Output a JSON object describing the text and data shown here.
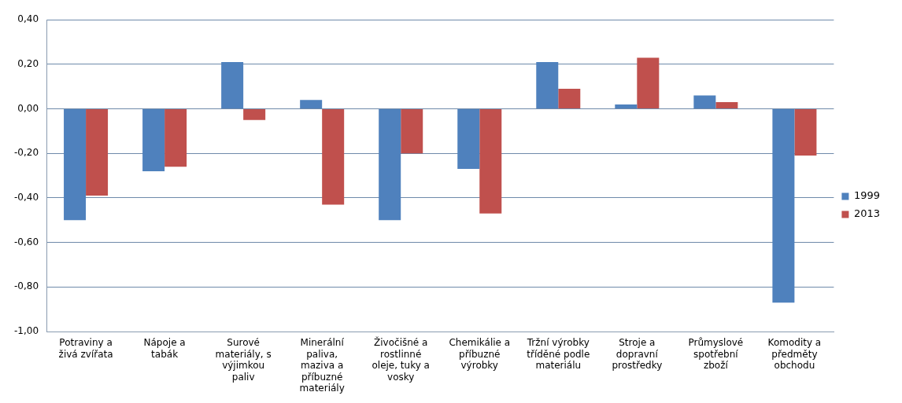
{
  "chart_data": {
    "type": "bar",
    "categories": [
      "Potraviny a živá zvířata",
      "Nápoje a tabák",
      "Surové materiály, s výjimkou paliv",
      "Minerální paliva, maziva a příbuzné materiály",
      "Živočišné a rostlinné oleje, tuky a vosky",
      "Chemikálie a příbuzné výrobky",
      "Tržní výrobky tříděné podle materiálu",
      "Stroje a dopravní prostředky",
      "Průmyslové spotřební zboží",
      "Komodity a předměty obchodu"
    ],
    "series": [
      {
        "name": "1999",
        "color": "#4f81bd",
        "values": [
          -0.5,
          -0.28,
          0.21,
          0.04,
          -0.5,
          -0.27,
          0.21,
          0.02,
          0.06,
          -0.87
        ]
      },
      {
        "name": "2013",
        "color": "#c0504d",
        "values": [
          -0.39,
          -0.26,
          -0.05,
          -0.43,
          -0.2,
          -0.47,
          0.09,
          0.23,
          0.03,
          -0.21
        ]
      }
    ],
    "ylim": [
      -1,
      0.4
    ],
    "yticks": [
      {
        "value": -1,
        "label": "-1,00"
      },
      {
        "value": -0.8,
        "label": "-0,80"
      },
      {
        "value": -0.6,
        "label": "-0,60"
      },
      {
        "value": -0.4,
        "label": "-0,40"
      },
      {
        "value": -0.2,
        "label": "-0,20"
      },
      {
        "value": 0,
        "label": "0,00"
      },
      {
        "value": 0.2,
        "label": "0,20"
      },
      {
        "value": 0.4,
        "label": "0,40"
      }
    ],
    "grid": "y",
    "legend": "right"
  }
}
